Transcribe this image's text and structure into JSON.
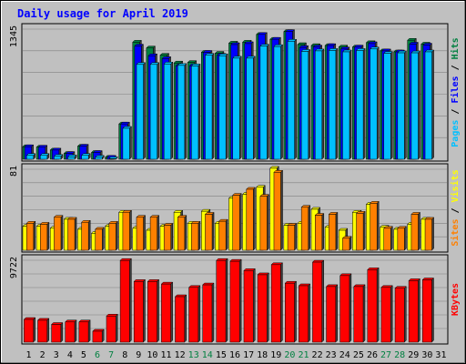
{
  "chart_data": {
    "type": "bar",
    "title": "Daily usage for April 2019",
    "categories": [
      "1",
      "2",
      "3",
      "4",
      "5",
      "6",
      "7",
      "8",
      "9",
      "10",
      "11",
      "12",
      "13",
      "14",
      "15",
      "16",
      "17",
      "18",
      "19",
      "20",
      "21",
      "22",
      "23",
      "24",
      "25",
      "26",
      "27",
      "28",
      "29",
      "30",
      "31"
    ],
    "weekend_days": [
      "6",
      "7",
      "13",
      "14",
      "20",
      "21",
      "27",
      "28"
    ],
    "panels": [
      {
        "name": "hits-files-pages",
        "ymax": 1345,
        "ymax_label": "1345",
        "side_label_parts": [
          {
            "text": "Pages",
            "color": "#00c0ff"
          },
          {
            "text": " / ",
            "color": "#000000"
          },
          {
            "text": "Files",
            "color": "#0000ff"
          },
          {
            "text": " / ",
            "color": "#000000"
          },
          {
            "text": "Hits",
            "color": "#008040"
          }
        ],
        "series": [
          {
            "name": "Hits",
            "color": "#008040",
            "values": [
              130,
              125,
              95,
              60,
              135,
              70,
              20,
              365,
              1210,
              1150,
              1075,
              995,
              1000,
              1105,
              1095,
              1200,
              1210,
              1290,
              1240,
              1320,
              1185,
              1175,
              1175,
              1160,
              1160,
              1205,
              1120,
              1110,
              1230,
              1190,
              0
            ]
          },
          {
            "name": "Files",
            "color": "#0000ff",
            "values": [
              130,
              125,
              95,
              60,
              135,
              70,
              20,
              365,
              1170,
              1070,
              1040,
              965,
              965,
              1105,
              1075,
              1185,
              1195,
              1290,
              1240,
              1320,
              1155,
              1160,
              1175,
              1140,
              1160,
              1195,
              1120,
              1110,
              1190,
              1180,
              0
            ]
          },
          {
            "name": "Pages",
            "color": "#00c0ff",
            "values": [
              40,
              40,
              30,
              25,
              40,
              20,
              5,
              320,
              980,
              980,
              985,
              970,
              965,
              1075,
              1070,
              1045,
              1045,
              1170,
              1165,
              1220,
              1115,
              1120,
              1125,
              1110,
              1125,
              1140,
              1095,
              1100,
              1100,
              1110,
              0
            ]
          }
        ]
      },
      {
        "name": "visits-sites",
        "ymax": 81,
        "ymax_label": "81",
        "side_label_parts": [
          {
            "text": "Sites",
            "color": "#ff8000"
          },
          {
            "text": " / ",
            "color": "#000000"
          },
          {
            "text": "Visits",
            "color": "#ffff00"
          }
        ],
        "series": [
          {
            "name": "Visits",
            "color": "#ffff00",
            "values": [
              24,
              24,
              22,
              31,
              21,
              17,
              24,
              38,
              22,
              20,
              24,
              38,
              27,
              39,
              27,
              52,
              56,
              63,
              82,
              25,
              27,
              41,
              23,
              20,
              38,
              46,
              23,
              21,
              26,
              31,
              0
            ]
          },
          {
            "name": "Sites",
            "color": "#ff8000",
            "values": [
              27,
              26,
              33,
              31,
              28,
              21,
              27,
              38,
              33,
              33,
              25,
              33,
              27,
              36,
              29,
              55,
              61,
              54,
              78,
              25,
              43,
              35,
              36,
              12,
              37,
              47,
              22,
              22,
              36,
              31,
              0
            ]
          }
        ]
      },
      {
        "name": "kbytes",
        "ymax": 9722,
        "ymax_label": "9722",
        "side_label_parts": [
          {
            "text": "KBytes",
            "color": "#ff0000"
          }
        ],
        "series": [
          {
            "name": "KBytes",
            "color": "#ff0000",
            "values": [
              2700,
              2600,
              2100,
              2400,
              2400,
              1300,
              3100,
              9700,
              7200,
              7200,
              6900,
              5400,
              6500,
              6800,
              9700,
              9600,
              8500,
              8000,
              9200,
              7000,
              6700,
              9500,
              6600,
              7900,
              6600,
              8600,
              6500,
              6400,
              7300,
              7400,
              0
            ]
          }
        ]
      }
    ]
  }
}
